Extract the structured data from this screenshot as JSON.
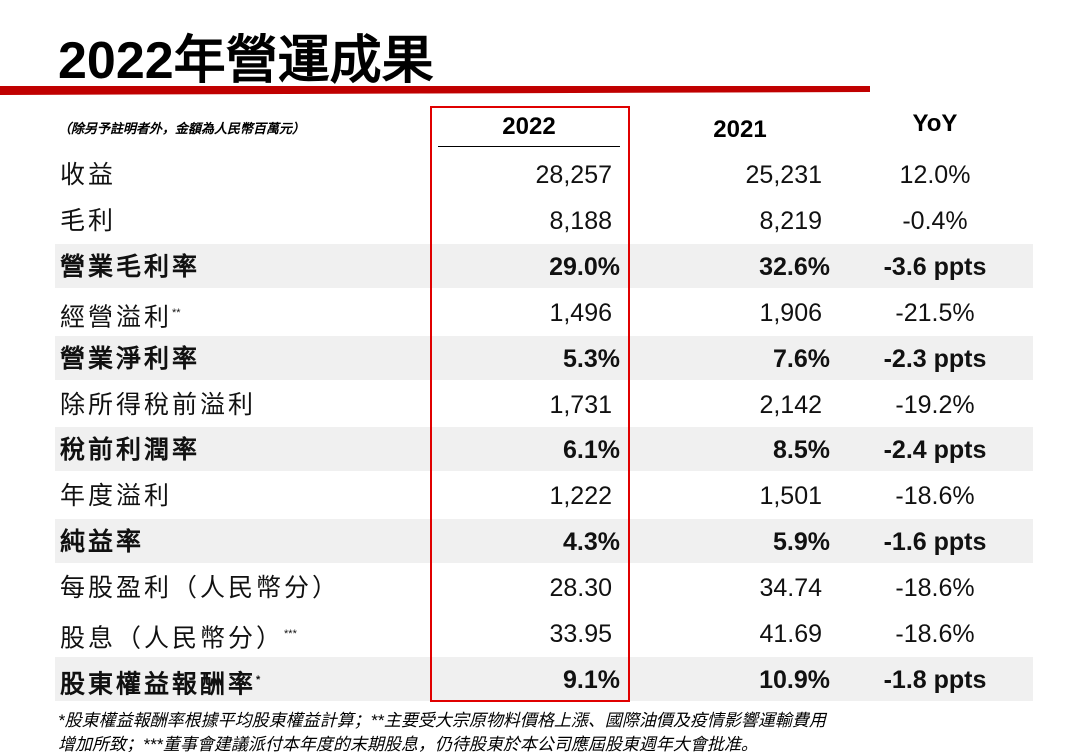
{
  "header": {
    "title": "2022年營運成果",
    "note": "（除另予註明者外，金額為人民幣百萬元）"
  },
  "table": {
    "columns": [
      "2022",
      "2021",
      "YoY"
    ],
    "highlight_column": 0,
    "rows": [
      {
        "label": "收益",
        "values": [
          "28,257",
          "25,231",
          "12.0%"
        ],
        "bold": false
      },
      {
        "label": "毛利",
        "values": [
          "8,188",
          "8,219",
          "-0.4%"
        ],
        "bold": false
      },
      {
        "label": "營業毛利率",
        "values": [
          "29.0%",
          "32.6%",
          "-3.6 ppts"
        ],
        "bold": true
      },
      {
        "label": "經營溢利",
        "mark": "**",
        "values": [
          "1,496",
          "1,906",
          "-21.5%"
        ],
        "bold": false
      },
      {
        "label": "營業淨利率",
        "values": [
          "5.3%",
          "7.6%",
          "-2.3 ppts"
        ],
        "bold": true
      },
      {
        "label": "除所得稅前溢利",
        "values": [
          "1,731",
          "2,142",
          "-19.2%"
        ],
        "bold": false
      },
      {
        "label": "稅前利潤率",
        "values": [
          "6.1%",
          "8.5%",
          "-2.4 ppts"
        ],
        "bold": true
      },
      {
        "label": "年度溢利",
        "values": [
          "1,222",
          "1,501",
          "-18.6%"
        ],
        "bold": false
      },
      {
        "label": "純益率",
        "values": [
          "4.3%",
          "5.9%",
          "-1.6 ppts"
        ],
        "bold": true
      },
      {
        "label": "每股盈利（人民幣分）",
        "values": [
          "28.30",
          "34.74",
          "-18.6%"
        ],
        "bold": false
      },
      {
        "label": "股息（人民幣分）",
        "mark": "***",
        "values": [
          "33.95",
          "41.69",
          "-18.6%"
        ],
        "bold": false
      },
      {
        "label": "股東權益報酬率",
        "mark": "*",
        "values": [
          "9.1%",
          "10.9%",
          "-1.8 ppts"
        ],
        "bold": true
      }
    ]
  },
  "footnote": [
    "*股東權益報酬率根據平均股東權益計算；**主要受大宗原物料價格上漲、國際油價及疫情影響運輸費用",
    "增加所致；***董事會建議派付本年度的末期股息，仍待股東於本公司應屆股東週年大會批准。"
  ]
}
